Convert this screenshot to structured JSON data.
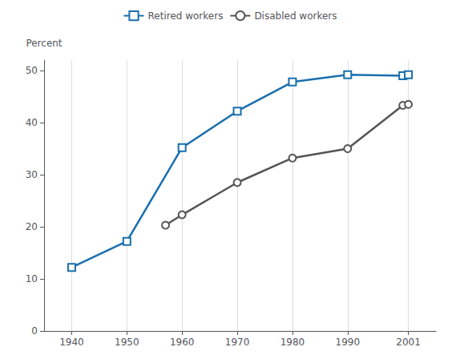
{
  "chart_data": {
    "type": "line",
    "ylabel": "Percent",
    "series": [
      {
        "name": "Retired workers",
        "color": "#1a6fad",
        "marker": "square",
        "x": [
          1940,
          1950,
          1960,
          1970,
          1980,
          1990,
          2000,
          2001
        ],
        "values": [
          12.2,
          17.2,
          35.2,
          42.2,
          47.8,
          49.2,
          49.0,
          49.2
        ]
      },
      {
        "name": "Disabled workers",
        "color": "#555555",
        "marker": "circle",
        "x": [
          1957,
          1960,
          1970,
          1980,
          1990,
          2000,
          2001
        ],
        "values": [
          20.3,
          22.3,
          28.5,
          33.2,
          35.0,
          43.3,
          43.5
        ]
      }
    ],
    "xlim": [
      1935,
      2006
    ],
    "xticks": [
      1940,
      1950,
      1960,
      1970,
      1980,
      1990,
      2001
    ],
    "ylim": [
      0,
      52
    ],
    "yticks": [
      0,
      10,
      20,
      30,
      40,
      50
    ],
    "grid": "x",
    "legend": "top"
  }
}
